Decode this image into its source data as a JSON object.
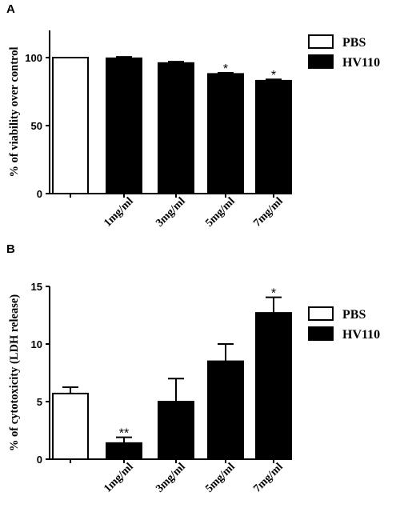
{
  "chart_data": [
    {
      "panel_label": "A",
      "type": "bar",
      "categories": [
        "",
        "1mg/ml",
        "3mg/ml",
        "5mg/ml",
        "7mg/ml"
      ],
      "series": [
        {
          "name": "PBS",
          "color": "#ffffff",
          "values": [
            100,
            null,
            null,
            null,
            null
          ]
        },
        {
          "name": "HV110",
          "color": "#000000",
          "values": [
            null,
            99.5,
            96,
            88,
            83
          ]
        }
      ],
      "error": [
        0,
        1,
        1,
        0.8,
        1
      ],
      "annotations": [
        "",
        "",
        "",
        "*",
        "*"
      ],
      "ylabel": "% of viability over control",
      "ylim": [
        0,
        120
      ],
      "yticks": [
        0,
        50,
        100
      ],
      "legend": "top-right",
      "grid": false
    },
    {
      "panel_label": "B",
      "type": "bar",
      "categories": [
        "",
        "1mg/ml",
        "3mg/ml",
        "5mg/ml",
        "7mg/ml"
      ],
      "series": [
        {
          "name": "PBS",
          "color": "#ffffff",
          "values": [
            5.7,
            null,
            null,
            null,
            null
          ]
        },
        {
          "name": "HV110",
          "color": "#000000",
          "values": [
            null,
            1.4,
            5,
            8.5,
            12.7
          ]
        }
      ],
      "error": [
        0.55,
        0.5,
        2,
        1.5,
        1.35
      ],
      "annotations": [
        "",
        "**",
        "",
        "",
        "*"
      ],
      "ylabel": "% of cytotoxicity (LDH release)",
      "ylim": [
        0,
        15
      ],
      "yticks": [
        0,
        5,
        10,
        15
      ],
      "legend": "top-right",
      "grid": false
    }
  ]
}
